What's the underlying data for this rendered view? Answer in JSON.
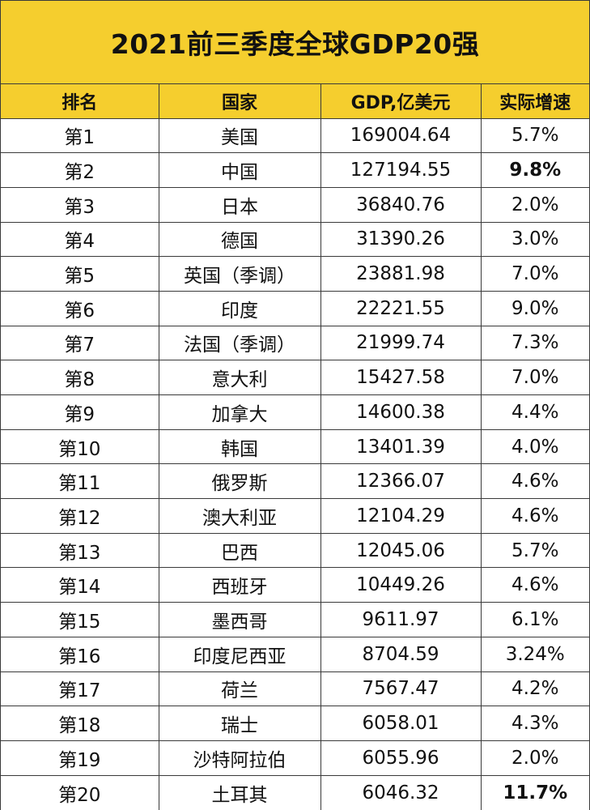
{
  "chart_data": {
    "type": "table",
    "title": "2021前三季度全球GDP20强",
    "columns": [
      "排名",
      "国家",
      "GDP,亿美元",
      "实际增速"
    ],
    "rows": [
      {
        "rank": "第1",
        "country": "美国",
        "gdp": "169004.64",
        "growth": "5.7%",
        "highlight": false
      },
      {
        "rank": "第2",
        "country": "中国",
        "gdp": "127194.55",
        "growth": "9.8%",
        "highlight": true
      },
      {
        "rank": "第3",
        "country": "日本",
        "gdp": "36840.76",
        "growth": "2.0%",
        "highlight": false
      },
      {
        "rank": "第4",
        "country": "德国",
        "gdp": "31390.26",
        "growth": "3.0%",
        "highlight": false
      },
      {
        "rank": "第5",
        "country": "英国（季调）",
        "gdp": "23881.98",
        "growth": "7.0%",
        "highlight": false
      },
      {
        "rank": "第6",
        "country": "印度",
        "gdp": "22221.55",
        "growth": "9.0%",
        "highlight": false
      },
      {
        "rank": "第7",
        "country": "法国（季调）",
        "gdp": "21999.74",
        "growth": "7.3%",
        "highlight": false
      },
      {
        "rank": "第8",
        "country": "意大利",
        "gdp": "15427.58",
        "growth": "7.0%",
        "highlight": false
      },
      {
        "rank": "第9",
        "country": "加拿大",
        "gdp": "14600.38",
        "growth": "4.4%",
        "highlight": false
      },
      {
        "rank": "第10",
        "country": "韩国",
        "gdp": "13401.39",
        "growth": "4.0%",
        "highlight": false
      },
      {
        "rank": "第11",
        "country": "俄罗斯",
        "gdp": "12366.07",
        "growth": "4.6%",
        "highlight": false
      },
      {
        "rank": "第12",
        "country": "澳大利亚",
        "gdp": "12104.29",
        "growth": "4.6%",
        "highlight": false
      },
      {
        "rank": "第13",
        "country": "巴西",
        "gdp": "12045.06",
        "growth": "5.7%",
        "highlight": false
      },
      {
        "rank": "第14",
        "country": "西班牙",
        "gdp": "10449.26",
        "growth": "4.6%",
        "highlight": false
      },
      {
        "rank": "第15",
        "country": "墨西哥",
        "gdp": "9611.97",
        "growth": "6.1%",
        "highlight": false
      },
      {
        "rank": "第16",
        "country": "印度尼西亚",
        "gdp": "8704.59",
        "growth": "3.24%",
        "highlight": false
      },
      {
        "rank": "第17",
        "country": "荷兰",
        "gdp": "7567.47",
        "growth": "4.2%",
        "highlight": false
      },
      {
        "rank": "第18",
        "country": "瑞士",
        "gdp": "6058.01",
        "growth": "4.3%",
        "highlight": false
      },
      {
        "rank": "第19",
        "country": "沙特阿拉伯",
        "gdp": "6055.96",
        "growth": "2.0%",
        "highlight": false
      },
      {
        "rank": "第20",
        "country": "土耳其",
        "gdp": "6046.32",
        "growth": "11.7%",
        "highlight": true
      }
    ]
  },
  "colors": {
    "header_fill": "#f5ce2e",
    "border": "#3a3a3a",
    "text": "#111111"
  }
}
